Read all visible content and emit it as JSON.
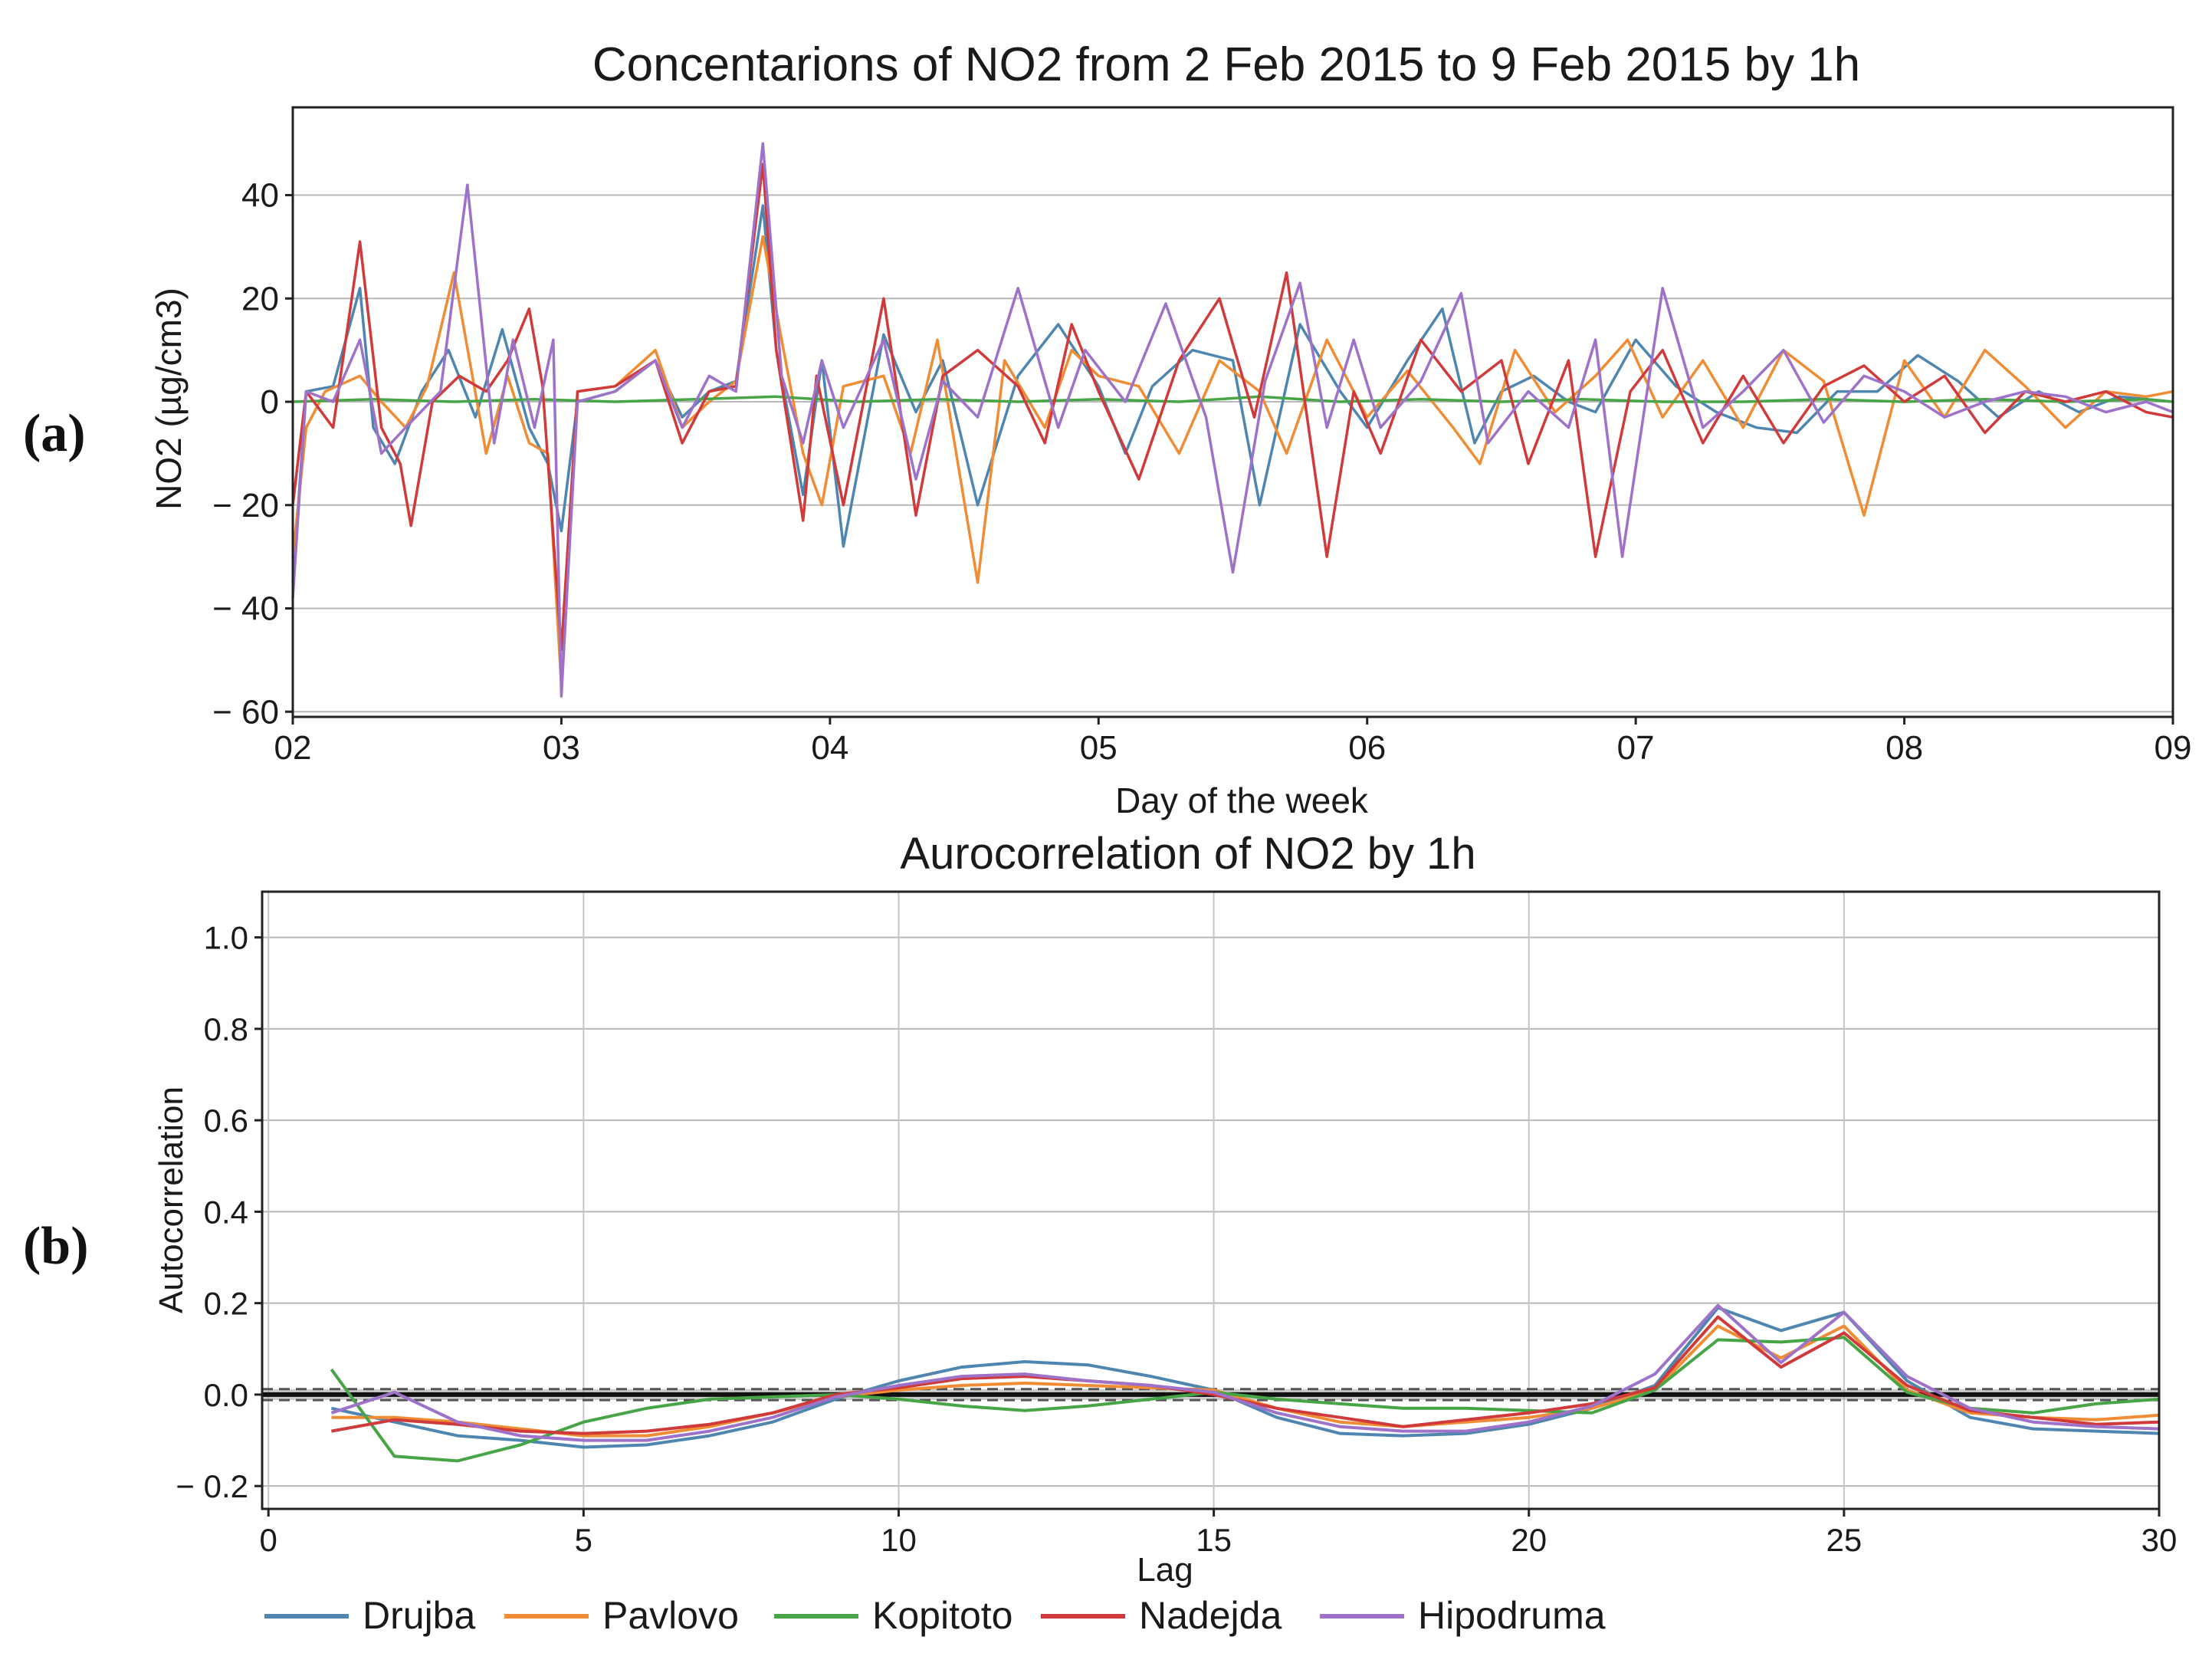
{
  "figure": {
    "panel_labels": {
      "a": "(a)",
      "b": "(b)"
    }
  },
  "chart_data": [
    {
      "type": "line",
      "title": "Concentarions of NO2 from 2 Feb 2015 to 9 Feb 2015 by 1h",
      "xlabel": "Day of the week",
      "ylabel": "NO2 (µg/cm3)",
      "xlim": [
        0,
        7
      ],
      "ylim": [
        -61,
        57
      ],
      "xticks": [
        0,
        1,
        2,
        3,
        4,
        5,
        6,
        7
      ],
      "xtick_labels": [
        "02",
        "03",
        "04",
        "05",
        "06",
        "07",
        "08",
        "09"
      ],
      "yticks": [
        40,
        20,
        0,
        -20,
        -40,
        -60
      ],
      "ytick_labels": [
        "40",
        "20",
        "0",
        "− 20",
        "− 40",
        "− 60"
      ],
      "grid": "horizontal",
      "series": [
        {
          "name": "Drujba",
          "color": "#4f86b0",
          "x": [
            0,
            0.05,
            0.15,
            0.25,
            0.3,
            0.38,
            0.48,
            0.58,
            0.68,
            0.78,
            0.88,
            0.95,
            1.0,
            1.06,
            1.2,
            1.35,
            1.45,
            1.55,
            1.65,
            1.75,
            1.8,
            1.9,
            1.97,
            2.05,
            2.2,
            2.32,
            2.42,
            2.55,
            2.7,
            2.85,
            3.0,
            3.1,
            3.2,
            3.35,
            3.5,
            3.6,
            3.75,
            3.9,
            4.0,
            4.15,
            4.28,
            4.4,
            4.5,
            4.62,
            4.75,
            4.85,
            5.0,
            5.15,
            5.3,
            5.45,
            5.6,
            5.75,
            5.9,
            6.05,
            6.2,
            6.35,
            6.5,
            6.65,
            6.8,
            7.0
          ],
          "y": [
            -35,
            2,
            3,
            22,
            -5,
            -12,
            2,
            10,
            -3,
            14,
            -5,
            -12,
            -25,
            0,
            2,
            8,
            -3,
            2,
            4,
            38,
            10,
            -18,
            8,
            -28,
            13,
            -2,
            8,
            -20,
            5,
            15,
            3,
            -10,
            3,
            10,
            8,
            -20,
            15,
            2,
            -5,
            8,
            18,
            -8,
            2,
            5,
            0,
            -2,
            12,
            3,
            -2,
            -5,
            -6,
            2,
            2,
            9,
            4,
            -3,
            2,
            -2,
            1,
            0
          ]
        },
        {
          "name": "Pavlovo",
          "color": "#ef8c34",
          "x": [
            0,
            0.05,
            0.12,
            0.25,
            0.33,
            0.42,
            0.5,
            0.6,
            0.72,
            0.8,
            0.88,
            0.95,
            1.0,
            1.06,
            1.2,
            1.35,
            1.45,
            1.55,
            1.65,
            1.75,
            1.82,
            1.9,
            1.97,
            2.05,
            2.2,
            2.3,
            2.4,
            2.55,
            2.65,
            2.8,
            2.9,
            3.0,
            3.15,
            3.3,
            3.45,
            3.6,
            3.7,
            3.85,
            4.0,
            4.15,
            4.32,
            4.42,
            4.55,
            4.7,
            4.85,
            4.97,
            5.1,
            5.25,
            5.4,
            5.55,
            5.7,
            5.85,
            6.0,
            6.15,
            6.3,
            6.45,
            6.6,
            6.75,
            6.9,
            7.0
          ],
          "y": [
            -30,
            -5,
            2,
            5,
            0,
            -5,
            3,
            25,
            -10,
            5,
            -8,
            -10,
            -55,
            2,
            3,
            10,
            -5,
            0,
            4,
            32,
            12,
            -10,
            -20,
            3,
            5,
            -10,
            12,
            -35,
            8,
            -5,
            10,
            5,
            3,
            -10,
            8,
            2,
            -10,
            12,
            -3,
            6,
            -5,
            -12,
            10,
            -2,
            5,
            12,
            -3,
            8,
            -5,
            10,
            4,
            -22,
            8,
            -3,
            10,
            3,
            -5,
            2,
            1,
            2
          ]
        },
        {
          "name": "Kopitoto",
          "color": "#47a447",
          "x": [
            0,
            0.3,
            0.6,
            0.9,
            1.2,
            1.5,
            1.8,
            2.1,
            2.4,
            2.7,
            3.0,
            3.3,
            3.6,
            3.9,
            4.2,
            4.5,
            4.8,
            5.1,
            5.4,
            5.7,
            6.0,
            6.3,
            6.6,
            6.9,
            7.0
          ],
          "y": [
            0,
            0.5,
            0,
            0.5,
            0,
            0.5,
            1,
            0,
            0.5,
            0,
            0.5,
            0,
            1,
            0,
            0.5,
            0,
            0.5,
            0,
            0,
            0.5,
            0,
            0.5,
            0,
            0.5,
            0
          ]
        },
        {
          "name": "Nadejda",
          "color": "#d03a3a",
          "x": [
            0,
            0.05,
            0.15,
            0.25,
            0.33,
            0.4,
            0.44,
            0.52,
            0.62,
            0.72,
            0.8,
            0.88,
            0.93,
            1.0,
            1.06,
            1.2,
            1.35,
            1.45,
            1.55,
            1.65,
            1.75,
            1.8,
            1.9,
            1.95,
            2.05,
            2.2,
            2.32,
            2.42,
            2.55,
            2.7,
            2.8,
            2.9,
            3.0,
            3.15,
            3.3,
            3.45,
            3.58,
            3.7,
            3.85,
            3.95,
            4.05,
            4.2,
            4.35,
            4.5,
            4.6,
            4.75,
            4.85,
            4.98,
            5.1,
            5.25,
            5.4,
            5.55,
            5.7,
            5.85,
            6.0,
            6.15,
            6.3,
            6.45,
            6.6,
            6.75,
            6.9,
            7.0
          ],
          "y": [
            -20,
            2,
            -5,
            31,
            -5,
            -12,
            -24,
            0,
            5,
            2,
            8,
            18,
            3,
            -48,
            2,
            3,
            8,
            -8,
            2,
            3,
            46,
            10,
            -23,
            5,
            -20,
            20,
            -22,
            5,
            10,
            3,
            -8,
            15,
            2,
            -15,
            8,
            20,
            -3,
            25,
            -30,
            2,
            -10,
            12,
            2,
            8,
            -12,
            8,
            -30,
            2,
            10,
            -8,
            5,
            -8,
            3,
            7,
            0,
            5,
            -6,
            2,
            0,
            2,
            -2,
            -3
          ]
        },
        {
          "name": "Hipodruma",
          "color": "#9e72c9",
          "x": [
            0,
            0.05,
            0.15,
            0.25,
            0.33,
            0.42,
            0.55,
            0.65,
            0.75,
            0.82,
            0.9,
            0.97,
            1.0,
            1.06,
            1.2,
            1.35,
            1.45,
            1.55,
            1.65,
            1.75,
            1.82,
            1.9,
            1.97,
            2.05,
            2.2,
            2.32,
            2.42,
            2.55,
            2.7,
            2.85,
            2.95,
            3.1,
            3.25,
            3.4,
            3.5,
            3.62,
            3.75,
            3.85,
            3.95,
            4.05,
            4.2,
            4.35,
            4.45,
            4.6,
            4.75,
            4.85,
            4.95,
            5.1,
            5.25,
            5.4,
            5.55,
            5.7,
            5.85,
            6.0,
            6.15,
            6.3,
            6.45,
            6.6,
            6.75,
            6.9,
            7.0
          ],
          "y": [
            -38,
            2,
            0,
            12,
            -10,
            -5,
            2,
            42,
            -8,
            12,
            -5,
            12,
            -57,
            0,
            2,
            8,
            -5,
            5,
            2,
            50,
            5,
            -8,
            8,
            -5,
            12,
            -15,
            4,
            -3,
            22,
            -5,
            10,
            0,
            19,
            -3,
            -33,
            4,
            23,
            -5,
            12,
            -5,
            4,
            21,
            -8,
            2,
            -5,
            12,
            -30,
            22,
            -5,
            2,
            10,
            -4,
            5,
            2,
            -3,
            0,
            2,
            1,
            -2,
            0,
            -2
          ]
        }
      ]
    },
    {
      "type": "line",
      "title": "Aurocorrelation of NO2 by 1h",
      "xlabel": "Lag",
      "ylabel": "Autocorrelation",
      "xlim": [
        -0.1,
        30
      ],
      "ylim": [
        -0.25,
        1.1
      ],
      "xticks": [
        0,
        5,
        10,
        15,
        20,
        25,
        30
      ],
      "xtick_labels": [
        "0",
        "5",
        "10",
        "15",
        "20",
        "25",
        "30"
      ],
      "yticks": [
        1.0,
        0.8,
        0.6,
        0.4,
        0.2,
        0.0,
        -0.2
      ],
      "ytick_labels": [
        "1.0",
        "0.8",
        "0.6",
        "0.4",
        "0.2",
        "0.0",
        "− 0.2"
      ],
      "grid": "both",
      "confidence_band": [
        -0.012,
        0.012
      ],
      "series": [
        {
          "name": "Drujba",
          "color": "#4f86b0",
          "x": [
            1,
            2,
            3,
            4,
            5,
            6,
            7,
            8,
            9,
            10,
            11,
            12,
            13,
            14,
            15,
            16,
            17,
            18,
            19,
            20,
            21,
            22,
            23,
            24,
            25,
            26,
            27,
            28,
            29,
            30
          ],
          "y": [
            -0.03,
            -0.06,
            -0.09,
            -0.1,
            -0.115,
            -0.11,
            -0.09,
            -0.06,
            -0.01,
            0.03,
            0.06,
            0.072,
            0.065,
            0.04,
            0.01,
            -0.05,
            -0.085,
            -0.09,
            -0.085,
            -0.065,
            -0.03,
            0.02,
            0.19,
            0.14,
            0.18,
            0.03,
            -0.05,
            -0.075,
            -0.08,
            -0.085
          ]
        },
        {
          "name": "Pavlovo",
          "color": "#ef8c34",
          "x": [
            1,
            2,
            3,
            4,
            5,
            6,
            7,
            8,
            9,
            10,
            11,
            12,
            13,
            14,
            15,
            16,
            17,
            18,
            19,
            20,
            21,
            22,
            23,
            24,
            25,
            26,
            27,
            28,
            29,
            30
          ],
          "y": [
            -0.05,
            -0.05,
            -0.06,
            -0.075,
            -0.09,
            -0.09,
            -0.07,
            -0.04,
            -0.005,
            0.01,
            0.02,
            0.025,
            0.02,
            0.015,
            0.01,
            -0.03,
            -0.06,
            -0.07,
            -0.06,
            -0.05,
            -0.03,
            0.01,
            0.15,
            0.08,
            0.15,
            0.01,
            -0.04,
            -0.05,
            -0.055,
            -0.045
          ]
        },
        {
          "name": "Kopitoto",
          "color": "#47a447",
          "x": [
            1,
            2,
            3,
            4,
            5,
            6,
            7,
            8,
            9,
            10,
            11,
            12,
            13,
            14,
            15,
            16,
            17,
            18,
            19,
            20,
            21,
            22,
            23,
            24,
            25,
            26,
            27,
            28,
            29,
            30
          ],
          "y": [
            0.055,
            -0.135,
            -0.145,
            -0.11,
            -0.06,
            -0.03,
            -0.01,
            -0.005,
            0.0,
            -0.01,
            -0.025,
            -0.035,
            -0.025,
            -0.01,
            0.005,
            -0.01,
            -0.02,
            -0.03,
            -0.03,
            -0.035,
            -0.04,
            0.01,
            0.12,
            0.115,
            0.125,
            0.005,
            -0.03,
            -0.04,
            -0.02,
            -0.01
          ]
        },
        {
          "name": "Nadejda",
          "color": "#d03a3a",
          "x": [
            1,
            2,
            3,
            4,
            5,
            6,
            7,
            8,
            9,
            10,
            11,
            12,
            13,
            14,
            15,
            16,
            17,
            18,
            19,
            20,
            21,
            22,
            23,
            24,
            25,
            26,
            27,
            28,
            29,
            30
          ],
          "y": [
            -0.08,
            -0.055,
            -0.065,
            -0.08,
            -0.085,
            -0.08,
            -0.065,
            -0.04,
            0.0,
            0.015,
            0.035,
            0.04,
            0.03,
            0.02,
            0.0,
            -0.03,
            -0.05,
            -0.07,
            -0.055,
            -0.04,
            -0.02,
            0.015,
            0.17,
            0.06,
            0.135,
            0.02,
            -0.035,
            -0.05,
            -0.065,
            -0.06
          ]
        },
        {
          "name": "Hipodruma",
          "color": "#9e72c9",
          "x": [
            1,
            2,
            3,
            4,
            5,
            6,
            7,
            8,
            9,
            10,
            11,
            12,
            13,
            14,
            15,
            16,
            17,
            18,
            19,
            20,
            21,
            22,
            23,
            24,
            25,
            26,
            27,
            28,
            29,
            30
          ],
          "y": [
            -0.04,
            0.005,
            -0.06,
            -0.09,
            -0.1,
            -0.1,
            -0.08,
            -0.05,
            -0.005,
            0.02,
            0.04,
            0.045,
            0.03,
            0.02,
            0.005,
            -0.04,
            -0.07,
            -0.08,
            -0.08,
            -0.06,
            -0.025,
            0.045,
            0.195,
            0.07,
            0.18,
            0.04,
            -0.03,
            -0.06,
            -0.07,
            -0.075
          ]
        }
      ]
    }
  ]
}
